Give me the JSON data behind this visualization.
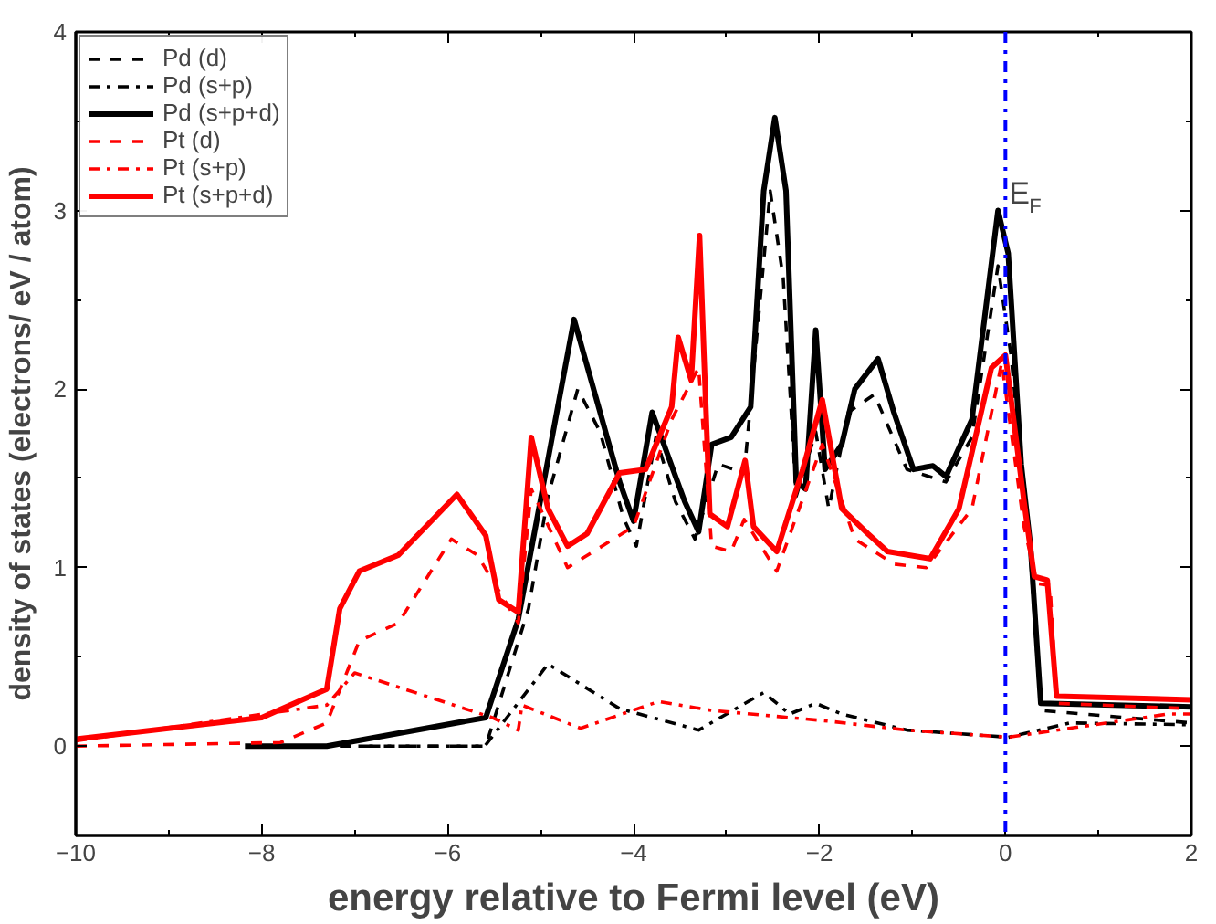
{
  "chart_data": {
    "type": "line",
    "xlabel": "energy relative to Fermi level (eV)",
    "ylabel": "density of states (electrons/ eV / atom)",
    "xlim": [
      -10,
      2
    ],
    "ylim": [
      -0.5,
      4
    ],
    "xticks": [
      -10,
      -8,
      -6,
      -4,
      -2,
      0,
      2
    ],
    "yticks": [
      0,
      1,
      2,
      3,
      4
    ],
    "grid": false,
    "legend": "top left",
    "marker": "none",
    "series": [
      {
        "name": "Pd (d)",
        "color": "#000000",
        "line_style": "dashed",
        "x": [
          -8.1,
          -7.3,
          -5.59,
          -5.13,
          -4.92,
          -4.6,
          -4.36,
          -4.11,
          -3.97,
          -3.76,
          -3.55,
          -3.34,
          -3.09,
          -2.81,
          -2.53,
          -2.39,
          -2.25,
          -2.04,
          -1.9,
          -1.69,
          -1.41,
          -1.06,
          -0.64,
          -0.36,
          -0.08,
          0.06,
          0.27,
          0.38,
          2
        ],
        "values": [
          0,
          0,
          0,
          0.77,
          1.4,
          2.0,
          1.76,
          1.28,
          1.12,
          1.73,
          1.37,
          1.16,
          1.58,
          1.53,
          3.11,
          2.62,
          1.4,
          1.76,
          1.33,
          1.87,
          1.97,
          1.55,
          1.48,
          1.73,
          2.69,
          2.19,
          1.05,
          0.2,
          0.13
        ]
      },
      {
        "name": "Pd (s+p)",
        "color": "#000000",
        "line_style": "dashdot",
        "x": [
          -8.1,
          -7.3,
          -5.6,
          -4.92,
          -4.15,
          -3.3,
          -2.6,
          -2.32,
          -2.04,
          -1.76,
          -1.06,
          0.03,
          0.69,
          2
        ],
        "values": [
          0,
          0,
          0,
          0.46,
          0.21,
          0.09,
          0.3,
          0.18,
          0.24,
          0.18,
          0.09,
          0.05,
          0.13,
          0.12
        ]
      },
      {
        "name": "Pd (s+p+d)",
        "color": "#000000",
        "line_style": "solid",
        "x": [
          -8.18,
          -7.3,
          -5.59,
          -5.24,
          -4.64,
          -4.15,
          -4.0,
          -3.8,
          -3.45,
          -3.3,
          -3.16,
          -2.95,
          -2.74,
          -2.6,
          -2.48,
          -2.36,
          -2.25,
          -2.15,
          -2.04,
          -1.94,
          -1.76,
          -1.62,
          -1.37,
          -1.2,
          -0.99,
          -0.78,
          -0.64,
          -0.36,
          -0.08,
          0.03,
          0.17,
          0.27,
          0.38,
          2
        ],
        "values": [
          0,
          0,
          0.16,
          0.71,
          2.39,
          1.48,
          1.26,
          1.87,
          1.37,
          1.2,
          1.69,
          1.73,
          1.9,
          3.11,
          3.52,
          3.11,
          1.48,
          1.44,
          2.33,
          1.55,
          1.69,
          2.0,
          2.17,
          1.87,
          1.55,
          1.57,
          1.51,
          1.83,
          3.0,
          2.76,
          1.58,
          1.12,
          0.24,
          0.22
        ]
      },
      {
        "name": "Pt (d)",
        "color": "#ff0000",
        "line_style": "dashed",
        "x": [
          -10,
          -7.8,
          -7.3,
          -6.95,
          -6.53,
          -5.96,
          -5.68,
          -5.24,
          -5.1,
          -4.71,
          -4.0,
          -3.59,
          -3.3,
          -3.16,
          -2.95,
          -2.81,
          -2.46,
          -1.97,
          -1.62,
          -1.2,
          -0.85,
          -0.36,
          -0.04,
          0.2,
          0.34,
          0.48,
          0.55,
          2
        ],
        "values": [
          0,
          0.02,
          0.13,
          0.59,
          0.69,
          1.16,
          1.07,
          0.69,
          1.44,
          1.0,
          1.23,
          1.83,
          2.12,
          1.12,
          1.09,
          1.27,
          0.98,
          1.69,
          1.16,
          1.02,
          1.0,
          1.33,
          2.15,
          1.23,
          0.91,
          0.9,
          0.24,
          0.21
        ]
      },
      {
        "name": "Pt (s+p)",
        "color": "#ff0000",
        "line_style": "dashdot",
        "x": [
          -10,
          -7.3,
          -7.0,
          -5.52,
          -5.24,
          -5.2,
          -4.57,
          -3.73,
          -3.16,
          -2.74,
          -1.9,
          -1.06,
          0.03,
          1.75,
          2
        ],
        "values": [
          0.03,
          0.23,
          0.41,
          0.16,
          0.09,
          0.23,
          0.1,
          0.25,
          0.2,
          0.18,
          0.14,
          0.09,
          0.05,
          0.18,
          0.18
        ]
      },
      {
        "name": "Pt (s+p+d)",
        "color": "#ff0000",
        "line_style": "solid",
        "x": [
          -10,
          -8,
          -7.3,
          -7.16,
          -6.95,
          -6.53,
          -5.9,
          -5.59,
          -5.45,
          -5.24,
          -5.1,
          -4.92,
          -4.71,
          -4.5,
          -4.15,
          -3.87,
          -3.59,
          -3.52,
          -3.38,
          -3.29,
          -3.18,
          -2.99,
          -2.8,
          -2.71,
          -2.46,
          -2.18,
          -1.97,
          -1.76,
          -1.48,
          -1.27,
          -0.81,
          -0.5,
          -0.15,
          0,
          0.2,
          0.31,
          0.45,
          0.55,
          2
        ],
        "values": [
          0.04,
          0.16,
          0.32,
          0.77,
          0.98,
          1.07,
          1.41,
          1.18,
          0.82,
          0.75,
          1.73,
          1.33,
          1.12,
          1.19,
          1.53,
          1.55,
          1.9,
          2.29,
          2.05,
          2.86,
          1.3,
          1.23,
          1.6,
          1.23,
          1.09,
          1.55,
          1.94,
          1.33,
          1.19,
          1.09,
          1.05,
          1.33,
          2.12,
          2.19,
          1.37,
          0.95,
          0.93,
          0.28,
          0.26
        ]
      }
    ],
    "ref_lines": [
      {
        "axis": "x",
        "value": 0,
        "color": "#0000ff",
        "line_style": "dashdot"
      }
    ],
    "annotations": [
      {
        "text": "E$_{F}$",
        "x": 0,
        "y": 3.0
      }
    ]
  }
}
